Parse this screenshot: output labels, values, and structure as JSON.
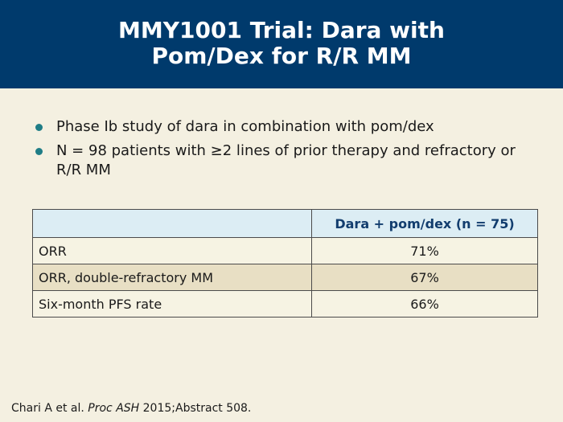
{
  "title": {
    "line1": "MMY1001 Trial: Dara with",
    "line2": "Pom/Dex for R/R MM"
  },
  "bullets": [
    "Phase Ib study of dara in combination with pom/dex",
    "N = 98 patients with ≥2 lines of prior therapy and refractory or R/R MM"
  ],
  "table": {
    "header_label": "",
    "header_value": "Dara + pom/dex (n = 75)",
    "rows": [
      {
        "label": "ORR",
        "value": "71%"
      },
      {
        "label": "ORR, double-refractory MM",
        "value": "67%"
      },
      {
        "label": "Six-month PFS rate",
        "value": "66%"
      }
    ]
  },
  "citation": {
    "authors": "Chari A et al.",
    "journal": "Proc ASH",
    "rest": "2015;Abstract 508."
  },
  "colors": {
    "title_bar": "#003a6c",
    "background": "#f4f0e1",
    "bullet": "#1f7d86",
    "table_header": "#dcedf4",
    "row_alt": "#e8dfc4"
  }
}
